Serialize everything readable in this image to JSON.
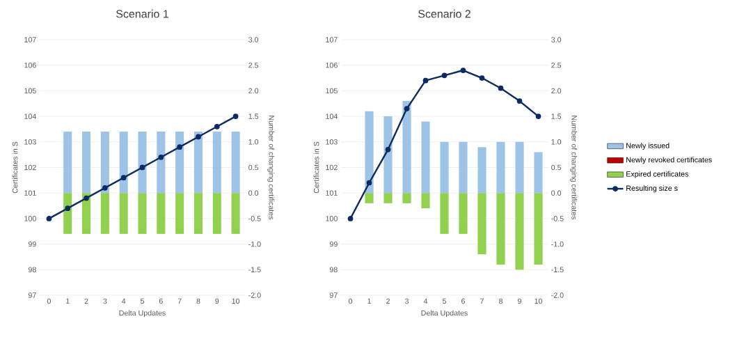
{
  "chart_data": [
    {
      "type": "bar",
      "title": "Scenario 1",
      "xlabel": "Delta Updates",
      "ylabel": "Certificates in S",
      "y2label": "Number of changing certificates",
      "categories": [
        "0",
        "1",
        "2",
        "3",
        "4",
        "5",
        "6",
        "7",
        "8",
        "9",
        "10"
      ],
      "stacked": true,
      "grid": "y",
      "marker": "circle",
      "ylim": [
        97,
        107
      ],
      "yticks": [
        97,
        98,
        99,
        100,
        101,
        102,
        103,
        104,
        105,
        106,
        107
      ],
      "y2lim": [
        -2,
        3
      ],
      "y2ticks": [
        {
          "value": -2,
          "label": "-2.0"
        },
        {
          "value": -1.5,
          "label": "-1.5"
        },
        {
          "value": -1,
          "label": "-1.0"
        },
        {
          "value": -0.5,
          "label": "-0.5"
        },
        {
          "value": 0,
          "label": "0.0"
        },
        {
          "value": 0.5,
          "label": "0.5"
        },
        {
          "value": 1,
          "label": "1.0"
        },
        {
          "value": 1.5,
          "label": "1.5"
        },
        {
          "value": 2,
          "label": "2.0"
        },
        {
          "value": 2.5,
          "label": "2.5"
        },
        {
          "value": 3,
          "label": "3.0"
        }
      ],
      "series": [
        {
          "color": "#9dc3e6",
          "axis": "y2",
          "values": [
            0,
            1.2,
            1.2,
            1.2,
            1.2,
            1.2,
            1.2,
            1.2,
            1.2,
            1.2,
            1.2
          ]
        },
        {
          "color": "#c00000",
          "axis": "y2",
          "values": [
            0,
            0,
            0,
            0,
            0,
            0,
            0,
            0,
            0,
            0,
            0
          ]
        },
        {
          "color": "#92d050",
          "axis": "y2",
          "values": [
            0,
            -0.8,
            -0.8,
            -0.8,
            -0.8,
            -0.8,
            -0.8,
            -0.8,
            -0.8,
            -0.8,
            -0.8
          ]
        },
        {
          "type": "line",
          "color": "#0d2a63",
          "values": [
            100,
            100.4,
            100.8,
            101.2,
            101.6,
            102,
            102.4,
            102.8,
            103.2,
            103.6,
            104
          ]
        }
      ]
    },
    {
      "type": "bar",
      "title": "Scenario 2",
      "xlabel": "Delta Updates",
      "ylabel": "Certificates in S",
      "y2label": "Number of changing certificates",
      "categories": [
        "0",
        "1",
        "2",
        "3",
        "4",
        "5",
        "6",
        "7",
        "8",
        "9",
        "10"
      ],
      "stacked": true,
      "grid": "y",
      "marker": "circle",
      "legend": "right",
      "ylim": [
        97,
        107
      ],
      "yticks": [
        97,
        98,
        99,
        100,
        101,
        102,
        103,
        104,
        105,
        106,
        107
      ],
      "y2lim": [
        -2,
        3
      ],
      "y2ticks": [
        {
          "value": -2,
          "label": "-2.0"
        },
        {
          "value": -1.5,
          "label": "-1.5"
        },
        {
          "value": -1,
          "label": "-1.0"
        },
        {
          "value": -0.5,
          "label": "-0.5"
        },
        {
          "value": 0,
          "label": "0.0"
        },
        {
          "value": 0.5,
          "label": "0.5"
        },
        {
          "value": 1,
          "label": "1.0"
        },
        {
          "value": 1.5,
          "label": "1.5"
        },
        {
          "value": 2,
          "label": "2.0"
        },
        {
          "value": 2.5,
          "label": "2.5"
        },
        {
          "value": 3,
          "label": "3.0"
        }
      ],
      "series": [
        {
          "name": "Newly issued",
          "color": "#9dc3e6",
          "axis": "y2",
          "values": [
            0,
            1.6,
            1.5,
            1.8,
            1.4,
            1.0,
            1.0,
            0.9,
            1.0,
            1.0,
            0.8
          ]
        },
        {
          "name": "Newly revoked certificates",
          "color": "#c00000",
          "axis": "y2",
          "values": [
            0,
            0,
            0,
            0,
            0,
            0,
            0,
            0,
            0,
            0,
            0
          ]
        },
        {
          "name": "Expired certificates",
          "color": "#92d050",
          "axis": "y2",
          "values": [
            0,
            -0.2,
            -0.2,
            -0.2,
            -0.3,
            -0.8,
            -0.8,
            -1.2,
            -1.4,
            -1.5,
            -1.4
          ]
        },
        {
          "name": "Resulting size s",
          "type": "line",
          "color": "#0d2a63",
          "values": [
            100,
            101.4,
            102.7,
            104.3,
            105.4,
            105.6,
            105.8,
            105.5,
            105.1,
            104.6,
            104
          ]
        }
      ]
    }
  ]
}
